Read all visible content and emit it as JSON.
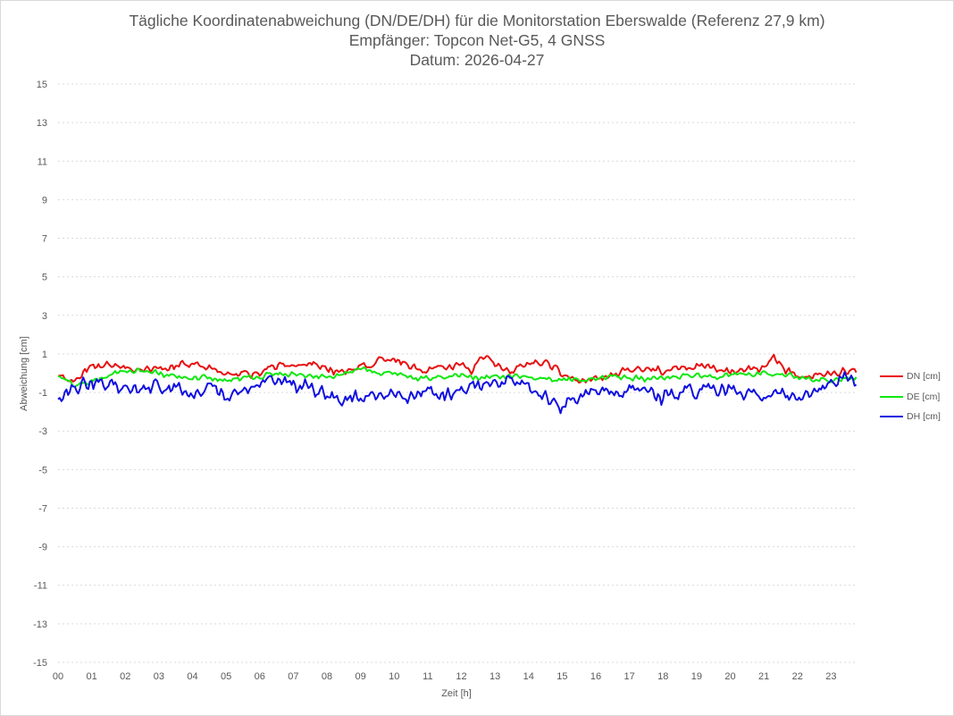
{
  "chart_data": {
    "type": "line",
    "title": "Tägliche Koordinatenabweichung (DN/DE/DH) für die Monitorstation Eberswalde (Referenz 27,9 km)",
    "subtitle": "Empfänger: Topcon Net-G5, 4 GNSS",
    "date_line": "Datum: 2026-04-27",
    "xlabel": "Zeit [h]",
    "ylabel": "Abweichung [cm]",
    "xlim": [
      0,
      24
    ],
    "ylim": [
      -15,
      15
    ],
    "x_ticks": [
      "00",
      "01",
      "02",
      "03",
      "04",
      "05",
      "06",
      "07",
      "08",
      "09",
      "10",
      "11",
      "12",
      "13",
      "14",
      "15",
      "16",
      "17",
      "18",
      "19",
      "20",
      "21",
      "22",
      "23"
    ],
    "y_ticks": [
      15,
      13,
      11,
      9,
      7,
      5,
      3,
      1,
      -1,
      -3,
      -5,
      -7,
      -9,
      -11,
      -13,
      -15
    ],
    "grid": "horizontal dashed",
    "legend_position": "right",
    "sample_interval_h": 0.05,
    "series": [
      {
        "name": "DN [cm]",
        "color": "#e81010",
        "anchors": [
          [
            0,
            -0.2
          ],
          [
            0.5,
            -0.5
          ],
          [
            0.8,
            0.2
          ],
          [
            1.5,
            0.5
          ],
          [
            2,
            0.3
          ],
          [
            2.8,
            0.1
          ],
          [
            3.5,
            0.4
          ],
          [
            4,
            0.5
          ],
          [
            4.5,
            0.3
          ],
          [
            5,
            0.0
          ],
          [
            5.5,
            -0.1
          ],
          [
            6,
            0.0
          ],
          [
            6.5,
            0.4
          ],
          [
            7,
            0.5
          ],
          [
            7.5,
            0.5
          ],
          [
            8,
            0.2
          ],
          [
            8.5,
            0.1
          ],
          [
            9,
            0.4
          ],
          [
            9.5,
            0.6
          ],
          [
            10,
            0.7
          ],
          [
            10.5,
            0.4
          ],
          [
            11,
            0.1
          ],
          [
            11.5,
            0.3
          ],
          [
            12,
            0.4
          ],
          [
            12.3,
            0.1
          ],
          [
            12.6,
            0.9
          ],
          [
            12.9,
            0.5
          ],
          [
            13.5,
            0.1
          ],
          [
            14,
            0.5
          ],
          [
            14.5,
            0.5
          ],
          [
            15,
            0.0
          ],
          [
            15.5,
            -0.4
          ],
          [
            16,
            -0.3
          ],
          [
            16.5,
            -0.1
          ],
          [
            17,
            0.2
          ],
          [
            17.5,
            0.2
          ],
          [
            18,
            0.1
          ],
          [
            18.5,
            0.2
          ],
          [
            19,
            0.3
          ],
          [
            19.5,
            0.3
          ],
          [
            20,
            0.1
          ],
          [
            20.5,
            0.2
          ],
          [
            21,
            0.2
          ],
          [
            21.3,
            0.8
          ],
          [
            21.6,
            0.2
          ],
          [
            22,
            0.0
          ],
          [
            22.5,
            -0.2
          ],
          [
            23,
            0.0
          ],
          [
            23.5,
            0.2
          ],
          [
            23.8,
            0.2
          ]
        ],
        "noise_cm": 0.25
      },
      {
        "name": "DE [cm]",
        "color": "#10e810",
        "anchors": [
          [
            0,
            -0.2
          ],
          [
            0.5,
            -0.6
          ],
          [
            1,
            -0.4
          ],
          [
            1.5,
            -0.1
          ],
          [
            2,
            0.1
          ],
          [
            2.5,
            0.2
          ],
          [
            3,
            0.0
          ],
          [
            3.5,
            -0.2
          ],
          [
            4,
            -0.2
          ],
          [
            5,
            -0.3
          ],
          [
            6,
            -0.2
          ],
          [
            6.5,
            0.0
          ],
          [
            7,
            -0.1
          ],
          [
            7.5,
            -0.1
          ],
          [
            8,
            -0.2
          ],
          [
            8.5,
            -0.1
          ],
          [
            9,
            0.3
          ],
          [
            9.5,
            0.0
          ],
          [
            10,
            0.0
          ],
          [
            10.5,
            -0.3
          ],
          [
            11,
            -0.3
          ],
          [
            11.5,
            -0.2
          ],
          [
            12,
            -0.1
          ],
          [
            12.5,
            -0.2
          ],
          [
            13,
            -0.2
          ],
          [
            13.5,
            -0.1
          ],
          [
            14,
            -0.2
          ],
          [
            14.5,
            -0.3
          ],
          [
            15,
            -0.3
          ],
          [
            15.5,
            -0.4
          ],
          [
            16,
            -0.3
          ],
          [
            16.5,
            -0.2
          ],
          [
            17,
            -0.2
          ],
          [
            17.5,
            -0.3
          ],
          [
            18,
            -0.2
          ],
          [
            18.5,
            -0.2
          ],
          [
            19,
            -0.1
          ],
          [
            19.5,
            -0.2
          ],
          [
            20,
            -0.1
          ],
          [
            20.5,
            -0.1
          ],
          [
            21,
            0.0
          ],
          [
            21.5,
            0.0
          ],
          [
            22,
            -0.2
          ],
          [
            22.5,
            -0.4
          ],
          [
            23,
            -0.3
          ],
          [
            23.5,
            -0.2
          ],
          [
            23.8,
            -0.2
          ]
        ],
        "noise_cm": 0.18
      },
      {
        "name": "DH [cm]",
        "color": "#1010e0",
        "anchors": [
          [
            0,
            -1.5
          ],
          [
            0.3,
            -1.0
          ],
          [
            0.6,
            -0.8
          ],
          [
            1,
            -0.4
          ],
          [
            1.5,
            -0.5
          ],
          [
            2,
            -0.7
          ],
          [
            2.5,
            -0.8
          ],
          [
            3,
            -0.6
          ],
          [
            3.5,
            -0.9
          ],
          [
            4,
            -1.0
          ],
          [
            4.5,
            -0.9
          ],
          [
            5,
            -1.1
          ],
          [
            5.5,
            -0.8
          ],
          [
            6,
            -0.6
          ],
          [
            6.5,
            -0.3
          ],
          [
            7,
            -0.6
          ],
          [
            7.5,
            -0.8
          ],
          [
            8,
            -1.1
          ],
          [
            8.5,
            -1.3
          ],
          [
            9,
            -1.2
          ],
          [
            9.5,
            -1.0
          ],
          [
            10,
            -1.1
          ],
          [
            10.5,
            -1.2
          ],
          [
            11,
            -1.0
          ],
          [
            11.5,
            -1.1
          ],
          [
            12,
            -0.9
          ],
          [
            12.5,
            -0.6
          ],
          [
            13,
            -0.5
          ],
          [
            13.5,
            -0.4
          ],
          [
            14,
            -0.9
          ],
          [
            14.5,
            -1.2
          ],
          [
            15,
            -1.8
          ],
          [
            15.3,
            -1.4
          ],
          [
            15.7,
            -0.9
          ],
          [
            16,
            -0.7
          ],
          [
            16.5,
            -0.8
          ],
          [
            17,
            -0.9
          ],
          [
            17.5,
            -1.0
          ],
          [
            18,
            -1.3
          ],
          [
            18.5,
            -1.0
          ],
          [
            19,
            -0.9
          ],
          [
            19.5,
            -0.8
          ],
          [
            20,
            -0.9
          ],
          [
            20.5,
            -1.0
          ],
          [
            21,
            -1.1
          ],
          [
            21.5,
            -1.0
          ],
          [
            22,
            -1.2
          ],
          [
            22.5,
            -0.9
          ],
          [
            23,
            -0.6
          ],
          [
            23.5,
            -0.2
          ],
          [
            23.8,
            -0.5
          ]
        ],
        "noise_cm": 0.45
      }
    ]
  }
}
